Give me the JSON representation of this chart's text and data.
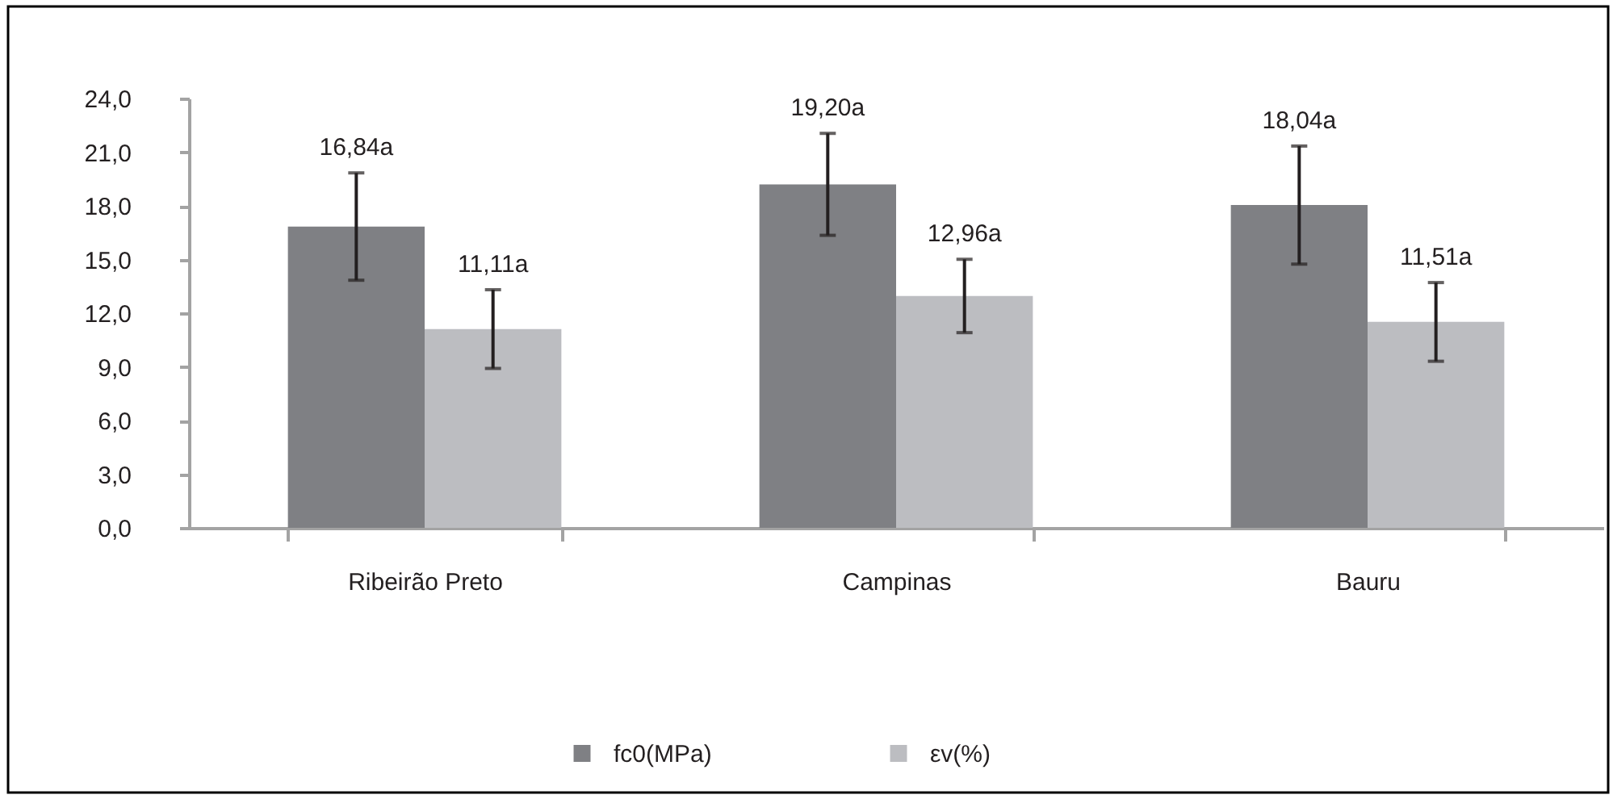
{
  "chart_data": {
    "type": "bar",
    "categories": [
      "Ribeirão Preto",
      "Campinas",
      "Bauru"
    ],
    "series": [
      {
        "name": "fc0(MPa)",
        "color": "#7f8084",
        "values": [
          16.84,
          19.2,
          18.04
        ],
        "errors": [
          3.0,
          2.85,
          3.3
        ],
        "value_labels": [
          "16,84a",
          "19,20a",
          "18,04a"
        ]
      },
      {
        "name": "εv(%)",
        "color": "#bcbdc1",
        "values": [
          11.11,
          12.96,
          11.51
        ],
        "errors": [
          2.2,
          2.05,
          2.2
        ],
        "value_labels": [
          "11,11a",
          "12,96a",
          "11,51a"
        ]
      }
    ],
    "ylim": [
      0,
      24
    ],
    "yticks": [
      {
        "value": 0,
        "label": "0,0"
      },
      {
        "value": 3,
        "label": "3,0"
      },
      {
        "value": 6,
        "label": "6,0"
      },
      {
        "value": 9,
        "label": "9,0"
      },
      {
        "value": 12,
        "label": "12,0"
      },
      {
        "value": 15,
        "label": "15,0"
      },
      {
        "value": 18,
        "label": "18,0"
      },
      {
        "value": 21,
        "label": "21,0"
      },
      {
        "value": 24,
        "label": "24,0"
      }
    ],
    "grid": false,
    "legend": "bottom"
  }
}
